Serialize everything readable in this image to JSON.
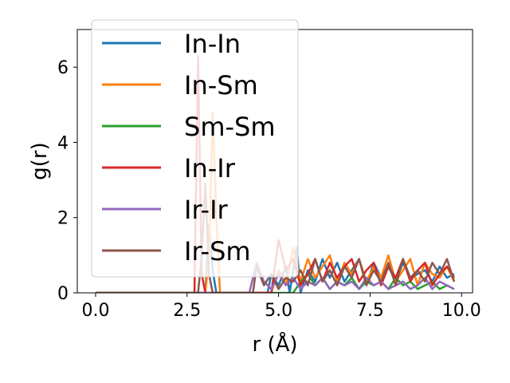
{
  "chart_data": {
    "type": "line",
    "title": "",
    "xlabel": "r (Å)",
    "ylabel": "g(r)",
    "xlim": [
      -0.5,
      10.3
    ],
    "ylim": [
      0,
      7
    ],
    "xticks": [
      0.0,
      2.5,
      5.0,
      7.5,
      10.0
    ],
    "xtick_labels": [
      "0.0",
      "2.5",
      "5.0",
      "7.5",
      "10.0"
    ],
    "yticks": [
      0,
      2,
      4,
      6
    ],
    "ytick_labels": [
      "0",
      "2",
      "4",
      "6"
    ],
    "grid": false,
    "legend_position": "top-left",
    "series": [
      {
        "name": "In-In",
        "color": "#1f77b4",
        "x": [
          0.0,
          2.9,
          3.0,
          3.1,
          3.2,
          3.3,
          3.4,
          4.7,
          4.8,
          5.0,
          5.2,
          5.3,
          5.5,
          5.6,
          5.8,
          6.0,
          6.2,
          6.4,
          6.6,
          6.8,
          7.0,
          7.2,
          7.4,
          7.6,
          7.8,
          8.0,
          8.2,
          8.4,
          8.6,
          8.8,
          9.0,
          9.2,
          9.4,
          9.6,
          9.8
        ],
        "y": [
          0.0,
          0.0,
          0.0,
          1.8,
          0.6,
          0.0,
          0.0,
          0.0,
          0.5,
          0.2,
          0.7,
          0.0,
          1.2,
          0.0,
          0.6,
          0.3,
          0.9,
          0.4,
          0.8,
          0.3,
          0.6,
          0.9,
          0.2,
          0.8,
          0.4,
          0.7,
          0.3,
          0.8,
          0.4,
          0.5,
          0.6,
          0.3,
          0.7,
          0.4,
          0.5
        ]
      },
      {
        "name": "In-Sm",
        "color": "#ff7f0e",
        "x": [
          0.0,
          3.0,
          3.1,
          3.2,
          3.3,
          3.4,
          3.5,
          4.8,
          5.0,
          5.2,
          5.4,
          5.6,
          5.8,
          6.0,
          6.2,
          6.4,
          6.6,
          6.8,
          7.0,
          7.2,
          7.4,
          7.6,
          7.8,
          8.0,
          8.2,
          8.4,
          8.6,
          8.8,
          9.0,
          9.2,
          9.4,
          9.6,
          9.8
        ],
        "y": [
          0.0,
          0.0,
          1.0,
          4.8,
          2.0,
          0.0,
          0.0,
          0.0,
          0.6,
          0.2,
          1.2,
          0.3,
          0.9,
          0.4,
          0.7,
          1.0,
          0.3,
          0.8,
          0.5,
          0.9,
          0.3,
          0.7,
          0.4,
          1.0,
          0.3,
          0.6,
          0.9,
          0.2,
          0.8,
          0.5,
          0.4,
          0.7,
          0.3
        ]
      },
      {
        "name": "Sm-Sm",
        "color": "#2ca02c",
        "x": [
          0.0,
          5.4,
          5.6,
          5.8,
          6.0,
          6.2,
          6.4,
          6.6,
          6.8,
          7.0,
          7.2,
          7.4,
          7.6,
          7.8,
          8.0,
          8.2,
          8.4,
          8.6,
          8.8,
          9.0,
          9.2,
          9.4,
          9.6,
          9.8
        ],
        "y": [
          0.0,
          0.0,
          0.3,
          0.5,
          0.2,
          0.4,
          0.1,
          0.3,
          0.2,
          0.4,
          0.1,
          0.3,
          0.2,
          0.3,
          0.1,
          0.4,
          0.2,
          0.3,
          0.1,
          0.2,
          0.3,
          0.1,
          0.2,
          0.1
        ]
      },
      {
        "name": "In-Ir",
        "color": "#d62728",
        "x": [
          0.0,
          2.7,
          2.8,
          2.9,
          3.0,
          4.8,
          5.0,
          5.2,
          5.4,
          5.6,
          5.8,
          6.0,
          6.2,
          6.4,
          6.6,
          6.8,
          7.0,
          7.2,
          7.4,
          7.6,
          7.8,
          8.0,
          8.2,
          8.4,
          8.6,
          8.8,
          9.0,
          9.2,
          9.4,
          9.6,
          9.8
        ],
        "y": [
          0.0,
          0.0,
          6.3,
          0.5,
          0.0,
          0.0,
          1.4,
          0.6,
          0.9,
          0.2,
          0.5,
          0.9,
          0.3,
          0.8,
          0.4,
          0.7,
          0.9,
          0.3,
          0.6,
          0.8,
          0.2,
          0.7,
          0.4,
          0.9,
          0.3,
          0.6,
          0.8,
          0.2,
          0.5,
          0.7,
          0.4
        ]
      },
      {
        "name": "Ir-Ir",
        "color": "#9467bd",
        "x": [
          0.0,
          4.2,
          4.4,
          4.6,
          4.8,
          5.0,
          5.2,
          5.4,
          5.6,
          5.8,
          6.0,
          6.2,
          6.4,
          6.6,
          6.8,
          7.0,
          7.2,
          7.4,
          7.6,
          7.8,
          8.0,
          8.2,
          8.4,
          8.6,
          8.8,
          9.0,
          9.2,
          9.4,
          9.6,
          9.8
        ],
        "y": [
          0.0,
          0.0,
          0.8,
          0.3,
          0.1,
          0.5,
          0.2,
          0.4,
          0.1,
          0.3,
          0.2,
          0.4,
          0.1,
          0.3,
          0.2,
          0.3,
          0.1,
          0.4,
          0.2,
          0.3,
          0.1,
          0.2,
          0.3,
          0.1,
          0.2,
          0.4,
          0.1,
          0.3,
          0.2,
          0.1
        ]
      },
      {
        "name": "Ir-Sm",
        "color": "#8c564b",
        "x": [
          0.0,
          2.8,
          2.9,
          3.0,
          3.1,
          3.2,
          4.3,
          4.4,
          4.6,
          4.8,
          5.0,
          5.2,
          5.4,
          5.6,
          5.8,
          6.0,
          6.2,
          6.4,
          6.6,
          6.8,
          7.0,
          7.2,
          7.4,
          7.6,
          7.8,
          8.0,
          8.2,
          8.4,
          8.6,
          8.8,
          9.0,
          9.2,
          9.4,
          9.6,
          9.8
        ],
        "y": [
          0.0,
          0.0,
          1.0,
          2.9,
          0.5,
          0.0,
          0.0,
          0.7,
          0.2,
          0.5,
          0.1,
          0.4,
          0.3,
          0.6,
          0.2,
          0.9,
          0.3,
          0.6,
          0.2,
          0.7,
          0.4,
          0.9,
          0.2,
          0.6,
          0.3,
          0.8,
          0.2,
          0.9,
          0.4,
          0.6,
          0.3,
          0.8,
          0.5,
          0.9,
          0.3
        ]
      }
    ]
  }
}
